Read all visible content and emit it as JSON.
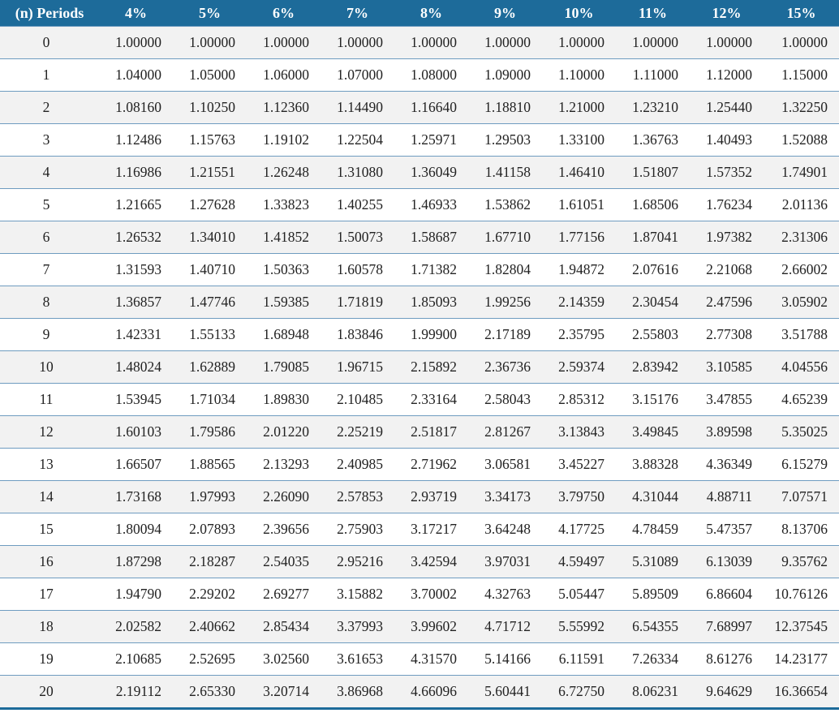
{
  "table": {
    "columns": [
      "(n) Periods",
      "4%",
      "5%",
      "6%",
      "7%",
      "8%",
      "9%",
      "10%",
      "11%",
      "12%",
      "15%"
    ],
    "rows": [
      [
        "0",
        "1.00000",
        "1.00000",
        "1.00000",
        "1.00000",
        "1.00000",
        "1.00000",
        "1.00000",
        "1.00000",
        "1.00000",
        "1.00000"
      ],
      [
        "1",
        "1.04000",
        "1.05000",
        "1.06000",
        "1.07000",
        "1.08000",
        "1.09000",
        "1.10000",
        "1.11000",
        "1.12000",
        "1.15000"
      ],
      [
        "2",
        "1.08160",
        "1.10250",
        "1.12360",
        "1.14490",
        "1.16640",
        "1.18810",
        "1.21000",
        "1.23210",
        "1.25440",
        "1.32250"
      ],
      [
        "3",
        "1.12486",
        "1.15763",
        "1.19102",
        "1.22504",
        "1.25971",
        "1.29503",
        "1.33100",
        "1.36763",
        "1.40493",
        "1.52088"
      ],
      [
        "4",
        "1.16986",
        "1.21551",
        "1.26248",
        "1.31080",
        "1.36049",
        "1.41158",
        "1.46410",
        "1.51807",
        "1.57352",
        "1.74901"
      ],
      [
        "5",
        "1.21665",
        "1.27628",
        "1.33823",
        "1.40255",
        "1.46933",
        "1.53862",
        "1.61051",
        "1.68506",
        "1.76234",
        "2.01136"
      ],
      [
        "6",
        "1.26532",
        "1.34010",
        "1.41852",
        "1.50073",
        "1.58687",
        "1.67710",
        "1.77156",
        "1.87041",
        "1.97382",
        "2.31306"
      ],
      [
        "7",
        "1.31593",
        "1.40710",
        "1.50363",
        "1.60578",
        "1.71382",
        "1.82804",
        "1.94872",
        "2.07616",
        "2.21068",
        "2.66002"
      ],
      [
        "8",
        "1.36857",
        "1.47746",
        "1.59385",
        "1.71819",
        "1.85093",
        "1.99256",
        "2.14359",
        "2.30454",
        "2.47596",
        "3.05902"
      ],
      [
        "9",
        "1.42331",
        "1.55133",
        "1.68948",
        "1.83846",
        "1.99900",
        "2.17189",
        "2.35795",
        "2.55803",
        "2.77308",
        "3.51788"
      ],
      [
        "10",
        "1.48024",
        "1.62889",
        "1.79085",
        "1.96715",
        "2.15892",
        "2.36736",
        "2.59374",
        "2.83942",
        "3.10585",
        "4.04556"
      ],
      [
        "11",
        "1.53945",
        "1.71034",
        "1.89830",
        "2.10485",
        "2.33164",
        "2.58043",
        "2.85312",
        "3.15176",
        "3.47855",
        "4.65239"
      ],
      [
        "12",
        "1.60103",
        "1.79586",
        "2.01220",
        "2.25219",
        "2.51817",
        "2.81267",
        "3.13843",
        "3.49845",
        "3.89598",
        "5.35025"
      ],
      [
        "13",
        "1.66507",
        "1.88565",
        "2.13293",
        "2.40985",
        "2.71962",
        "3.06581",
        "3.45227",
        "3.88328",
        "4.36349",
        "6.15279"
      ],
      [
        "14",
        "1.73168",
        "1.97993",
        "2.26090",
        "2.57853",
        "2.93719",
        "3.34173",
        "3.79750",
        "4.31044",
        "4.88711",
        "7.07571"
      ],
      [
        "15",
        "1.80094",
        "2.07893",
        "2.39656",
        "2.75903",
        "3.17217",
        "3.64248",
        "4.17725",
        "4.78459",
        "5.47357",
        "8.13706"
      ],
      [
        "16",
        "1.87298",
        "2.18287",
        "2.54035",
        "2.95216",
        "3.42594",
        "3.97031",
        "4.59497",
        "5.31089",
        "6.13039",
        "9.35762"
      ],
      [
        "17",
        "1.94790",
        "2.29202",
        "2.69277",
        "3.15882",
        "3.70002",
        "4.32763",
        "5.05447",
        "5.89509",
        "6.86604",
        "10.76126"
      ],
      [
        "18",
        "2.02582",
        "2.40662",
        "2.85434",
        "3.37993",
        "3.99602",
        "4.71712",
        "5.55992",
        "6.54355",
        "7.68997",
        "12.37545"
      ],
      [
        "19",
        "2.10685",
        "2.52695",
        "3.02560",
        "3.61653",
        "4.31570",
        "5.14166",
        "6.11591",
        "7.26334",
        "8.61276",
        "14.23177"
      ],
      [
        "20",
        "2.19112",
        "2.65330",
        "3.20714",
        "3.86968",
        "4.66096",
        "5.60441",
        "6.72750",
        "8.06231",
        "9.64629",
        "16.36654"
      ]
    ]
  }
}
